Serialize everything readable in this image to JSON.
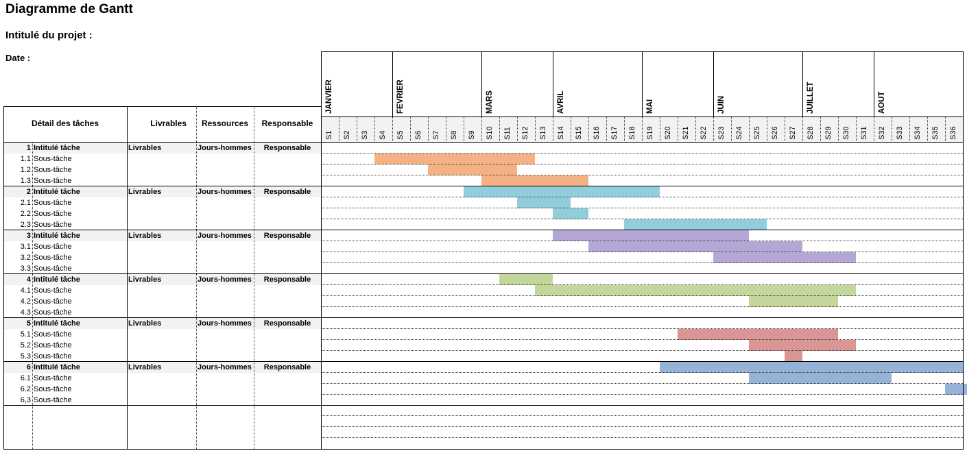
{
  "title": "Diagramme de Gantt",
  "project_label": "Intitulé du projet :",
  "date_label": "Date :",
  "headers": {
    "detail": "Détail des tâches",
    "livrables": "Livrables",
    "ressources": "Ressources",
    "responsable": "Responsable"
  },
  "months": [
    {
      "name": "JANVIER",
      "start_week": 1,
      "weeks": 4
    },
    {
      "name": "FEVRIER",
      "start_week": 5,
      "weeks": 5
    },
    {
      "name": "MARS",
      "start_week": 10,
      "weeks": 4
    },
    {
      "name": "AVRIL",
      "start_week": 14,
      "weeks": 5
    },
    {
      "name": "MAI",
      "start_week": 19,
      "weeks": 4
    },
    {
      "name": "JUIN",
      "start_week": 23,
      "weeks": 5
    },
    {
      "name": "JUILLET",
      "start_week": 28,
      "weeks": 4
    },
    {
      "name": "AOUT",
      "start_week": 32,
      "weeks": 5
    }
  ],
  "weeks": [
    "S1",
    "S2",
    "S3",
    "S4",
    "S5",
    "S6",
    "S7",
    "S8",
    "S9",
    "S10",
    "S11",
    "S12",
    "S13",
    "S14",
    "S15",
    "S16",
    "S17",
    "S18",
    "S19",
    "S20",
    "S21",
    "S22",
    "S23",
    "S24",
    "S25",
    "S26",
    "S27",
    "S28",
    "S29",
    "S30",
    "S31",
    "S32",
    "S33",
    "S34",
    "S35",
    "S36"
  ],
  "colors": {
    "header_bg": "#f2f2f2",
    "group_bg": "#f2f2f2",
    "groups": [
      "#f4b183",
      "#92cddc",
      "#b4a7d6",
      "#c4d79b",
      "#da9694",
      "#95b3d7"
    ]
  },
  "groups": [
    {
      "num": "1",
      "label": "Intitulé tâche",
      "livrables": "Livrables",
      "ressources": "Jours-hommes",
      "responsable": "Responsable",
      "bar": null,
      "subtasks": [
        {
          "num": "1.1",
          "label": "Sous-tâche",
          "bar": [
            3,
            11
          ]
        },
        {
          "num": "1.2",
          "label": "Sous-tâche",
          "bar": [
            6,
            10
          ]
        },
        {
          "num": "1.3",
          "label": "Sous-tâche",
          "bar": [
            9,
            14
          ]
        }
      ]
    },
    {
      "num": "2",
      "label": "Intitulé tâche",
      "livrables": "Livrables",
      "ressources": "Jours-hommes",
      "responsable": "Responsable",
      "bar": [
        8,
        18
      ],
      "subtasks": [
        {
          "num": "2.1",
          "label": "Sous-tâche",
          "bar": [
            11,
            13
          ]
        },
        {
          "num": "2.2",
          "label": "Sous-tâche",
          "bar": [
            13,
            14
          ]
        },
        {
          "num": "2.3",
          "label": "Sous-tâche",
          "bar": [
            17,
            24
          ]
        }
      ]
    },
    {
      "num": "3",
      "label": "Intitulé tâche",
      "livrables": "Livrables",
      "ressources": "Jours-hommes",
      "responsable": "Responsable",
      "bar": [
        13,
        23
      ],
      "subtasks": [
        {
          "num": "3.1",
          "label": "Sous-tâche",
          "bar": [
            15,
            26
          ]
        },
        {
          "num": "3.2",
          "label": "Sous-tâche",
          "bar": [
            22,
            29
          ]
        },
        {
          "num": "3.3",
          "label": "Sous-tâche",
          "bar": null
        }
      ]
    },
    {
      "num": "4",
      "label": "Intitulé tâche",
      "livrables": "Livrables",
      "ressources": "Jours-hommes",
      "responsable": "Responsable",
      "bar": [
        10,
        12
      ],
      "subtasks": [
        {
          "num": "4.1",
          "label": "Sous-tâche",
          "bar": [
            12,
            29
          ]
        },
        {
          "num": "4.2",
          "label": "Sous-tâche",
          "bar": [
            24,
            28
          ]
        },
        {
          "num": "4.3",
          "label": "Sous-tâche",
          "bar": null
        }
      ]
    },
    {
      "num": "5",
      "label": "Intitulé tâche",
      "livrables": "Livrables",
      "ressources": "Jours-hommes",
      "responsable": "Responsable",
      "bar": null,
      "subtasks": [
        {
          "num": "5.1",
          "label": "Sous-tâche",
          "bar": [
            20,
            28
          ]
        },
        {
          "num": "5.2",
          "label": "Sous-tâche",
          "bar": [
            24,
            29
          ]
        },
        {
          "num": "5.3",
          "label": "Sous-tâche",
          "bar": [
            26,
            26
          ]
        }
      ]
    },
    {
      "num": "6",
      "label": "Intitulé tâche",
      "livrables": "Livrables",
      "ressources": "Jours-hommes",
      "responsable": "Responsable",
      "bar": [
        19,
        35
      ],
      "subtasks": [
        {
          "num": "6.1",
          "label": "Sous-tâche",
          "bar": [
            24,
            31
          ]
        },
        {
          "num": "6.2",
          "label": "Sous-tâche",
          "bar": [
            35,
            36
          ]
        },
        {
          "num": "6,3",
          "label": "Sous-tâche",
          "bar": null
        }
      ]
    }
  ]
}
